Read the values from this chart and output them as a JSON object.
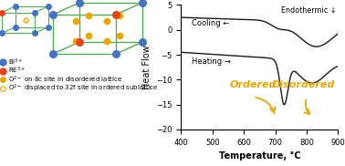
{
  "xlabel": "Temperature, °C",
  "ylabel": "Heat Flow",
  "xlim": [
    400,
    900
  ],
  "ylim": [
    -20,
    5
  ],
  "yticks": [
    5,
    0,
    -5,
    -10,
    -15,
    -20
  ],
  "xticks": [
    400,
    500,
    600,
    700,
    800,
    900
  ],
  "endothermic_label": "Endothermic ↓",
  "cooling_label": "Cooling ←",
  "heating_label": "Heating →",
  "ordered_label": "Ordered",
  "disordered_label": "Disordered",
  "ordered_color": "#E8A800",
  "disordered_color": "#E8A800",
  "curve_color": "#1a1a1a",
  "bi_color": "#4472C4",
  "re_color": "#E8421A",
  "o2_color": "#E8A800",
  "cube_color": "#50B050"
}
